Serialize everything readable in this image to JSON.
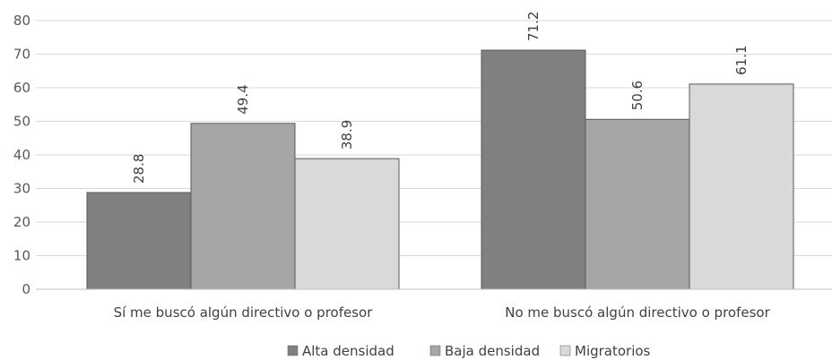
{
  "chart_data": {
    "type": "bar",
    "categories": [
      "Sí me buscó algún directivo  o profesor",
      "No me buscó algún directivo  o profesor"
    ],
    "series": [
      {
        "name": "Alta densidad",
        "values": [
          28.8,
          71.2
        ],
        "color": "#808080"
      },
      {
        "name": "Baja densidad",
        "values": [
          49.4,
          50.6
        ],
        "color": "#a6a6a6"
      },
      {
        "name": "Migratorios",
        "values": [
          38.9,
          61.1
        ],
        "color": "#d9d9d9"
      }
    ],
    "data_labels": [
      [
        "28.8",
        "71.2"
      ],
      [
        "49.4",
        "50.6"
      ],
      [
        "38.9",
        "61.1"
      ]
    ],
    "ylim": [
      0,
      80
    ],
    "yticks": [
      "0",
      "10",
      "20",
      "30",
      "40",
      "50",
      "60",
      "70",
      "80"
    ],
    "grid": true,
    "legend_position": "bottom",
    "title": "",
    "xlabel": "",
    "ylabel": ""
  }
}
